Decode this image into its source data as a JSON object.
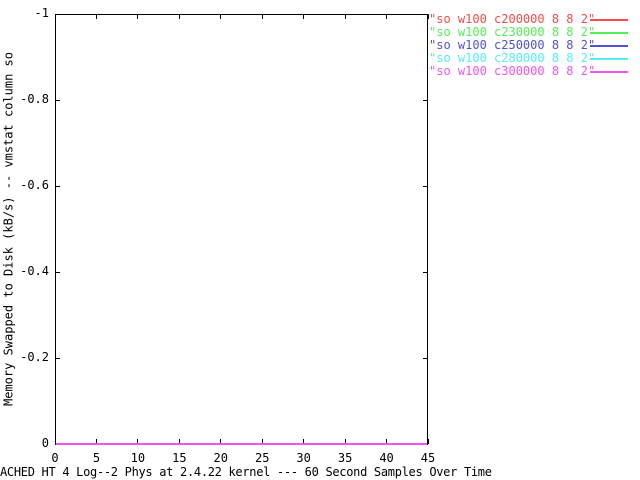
{
  "chart_data": {
    "type": "line",
    "xlabel": "ACHED HT 4 Log--2 Phys at 2.4.22 kernel --- 60 Second Samples Over Time",
    "ylabel": "Memory Swapped to Disk (kB/s) -- vmstat column so",
    "xlim": [
      0,
      45
    ],
    "ylim": [
      0,
      -1
    ],
    "y_axis_inverted": true,
    "grid": false,
    "legend_position": "outside-top-right",
    "x_tick_values": [
      0,
      5,
      10,
      15,
      20,
      25,
      30,
      35,
      40,
      45
    ],
    "x_tick_labels": [
      "0",
      "5",
      "10",
      "15",
      "20",
      "25",
      "30",
      "35",
      "40",
      "45"
    ],
    "y_tick_values": [
      0,
      -0.2,
      -0.4,
      -0.6,
      -0.8,
      -1
    ],
    "y_tick_labels": [
      "0",
      "-0.2",
      "-0.4",
      "-0.6",
      "-0.8",
      "-1"
    ],
    "series": [
      {
        "name": "\"so w100 c200000 8 8 2\"",
        "color": "#f04e4a",
        "x": [
          0,
          45
        ],
        "y": [
          0,
          0
        ]
      },
      {
        "name": "\"so w100 c230000 8 8 2\"",
        "color": "#55ef55",
        "x": [
          0,
          45
        ],
        "y": [
          0,
          0
        ]
      },
      {
        "name": "\"so w100 c250000 8 8 2\"",
        "color": "#5151d6",
        "x": [
          0,
          45
        ],
        "y": [
          0,
          0
        ]
      },
      {
        "name": "\"so w100 c280000 8 8 2\"",
        "color": "#55efef",
        "x": [
          0,
          45
        ],
        "y": [
          0,
          0
        ]
      },
      {
        "name": "\"so w100 c300000 8 8 2\"",
        "color": "#ef55ef",
        "x": [
          0,
          45
        ],
        "y": [
          0,
          0
        ]
      }
    ]
  },
  "colors": {
    "background": "#ffffff",
    "frame": "#000000",
    "text": "#000000"
  }
}
